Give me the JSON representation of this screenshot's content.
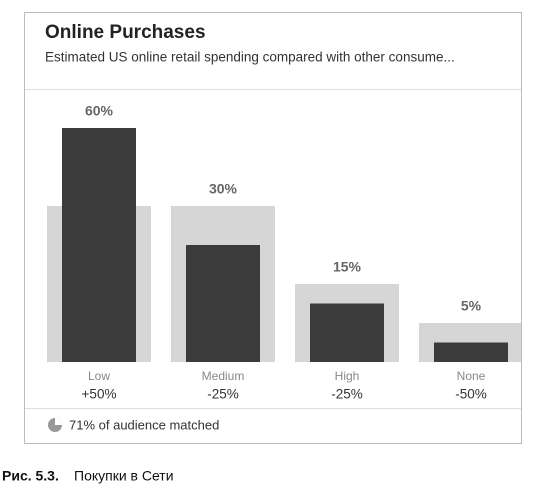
{
  "chart_data": {
    "type": "bar",
    "title": "Online Purchases",
    "subtitle": "Estimated US online retail spending compared with other consume...",
    "categories": [
      "Low",
      "Medium",
      "High",
      "None"
    ],
    "subcategories": [
      "+50%",
      "-25%",
      "-25%",
      "-50%"
    ],
    "series": [
      {
        "color": "#d6d6d6",
        "values": [
          40,
          40,
          20,
          10
        ]
      },
      {
        "color": "#3b3b3b",
        "values": [
          60,
          30,
          15,
          5
        ],
        "value_labels": [
          "60%",
          "30%",
          "15%",
          "5%"
        ]
      }
    ],
    "ylim": [
      0,
      60
    ],
    "footer": "71% of audience matched"
  },
  "caption": {
    "label": "Рис. 5.3.",
    "text": "Покупки в Сети"
  }
}
